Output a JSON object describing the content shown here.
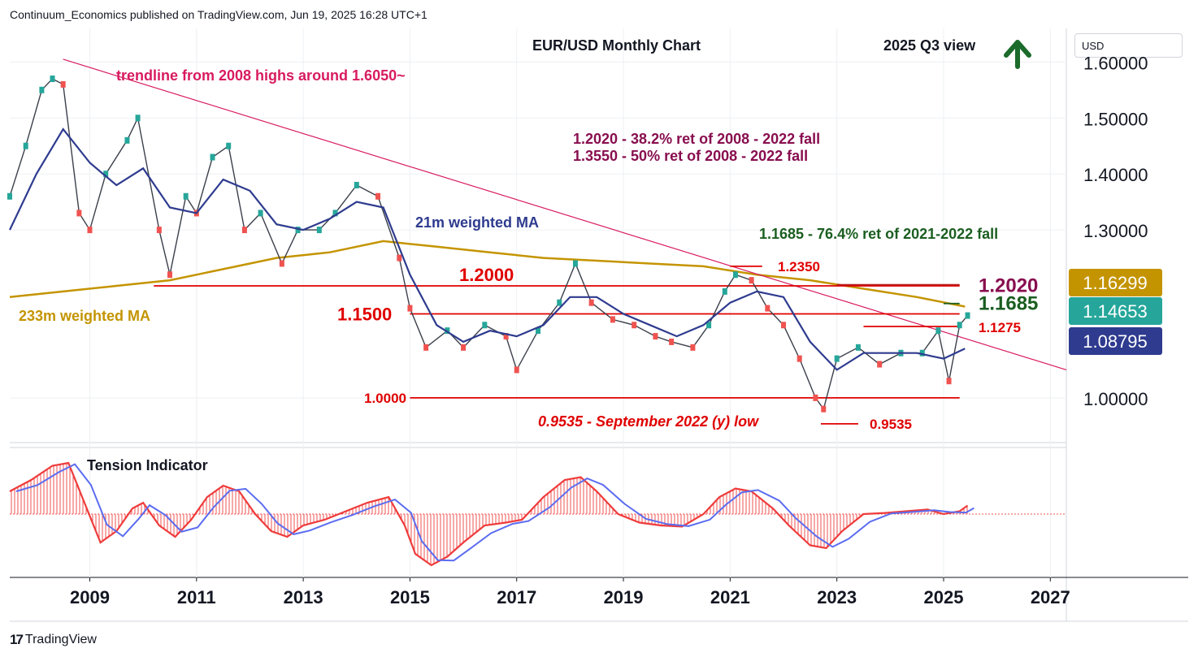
{
  "header": {
    "published": "Continuum_Economics published on TradingView.com, Jun 19, 2025 16:28 UTC+1"
  },
  "footer": {
    "brand": "TradingView"
  },
  "price_axis": {
    "currency": "USD"
  },
  "chart_data": {
    "type": "line",
    "title": "EUR/USD Monthly Chart",
    "subtitle": "2025 Q3 view",
    "view_direction": "up",
    "colors": {
      "price_up": "#26a69a",
      "price_down": "#ef5350",
      "wma21": "#2e3b8f",
      "ma233": "#c49400",
      "trendline": "#d81b60",
      "levels": "#e00000",
      "fib": "#880e4f",
      "fib_green": "#1b5e20"
    },
    "x_ticks": [
      "2009",
      "2011",
      "2013",
      "2015",
      "2017",
      "2019",
      "2021",
      "2023",
      "2025",
      "2027"
    ],
    "y_ticks": [
      "1.60000",
      "1.50000",
      "1.40000",
      "1.30000",
      "1.00000"
    ],
    "ylim": [
      0.92,
      1.66
    ],
    "xlim": [
      2007.5,
      2027.3
    ],
    "series": [
      {
        "name": "21m weighted MA",
        "x": [
          2007.5,
          2008.0,
          2008.5,
          2009.0,
          2009.5,
          2010.0,
          2010.5,
          2011.0,
          2011.5,
          2012.0,
          2012.5,
          2013.0,
          2013.5,
          2014.0,
          2014.5,
          2015.0,
          2015.5,
          2016.0,
          2016.5,
          2017.0,
          2017.5,
          2018.0,
          2018.5,
          2019.0,
          2019.5,
          2020.0,
          2020.5,
          2021.0,
          2021.5,
          2022.0,
          2022.5,
          2023.0,
          2023.5,
          2024.0,
          2024.5,
          2025.0,
          2025.4
        ],
        "y": [
          1.3,
          1.4,
          1.48,
          1.42,
          1.38,
          1.41,
          1.34,
          1.33,
          1.39,
          1.37,
          1.31,
          1.3,
          1.32,
          1.35,
          1.34,
          1.22,
          1.13,
          1.1,
          1.12,
          1.11,
          1.13,
          1.18,
          1.18,
          1.15,
          1.13,
          1.11,
          1.13,
          1.17,
          1.19,
          1.18,
          1.1,
          1.05,
          1.08,
          1.08,
          1.08,
          1.07,
          1.088
        ]
      },
      {
        "name": "233m weighted MA",
        "x": [
          2007.5,
          2008.5,
          2009.5,
          2010.5,
          2011.5,
          2012.5,
          2013.5,
          2014.5,
          2015.5,
          2016.5,
          2017.5,
          2018.5,
          2019.5,
          2020.5,
          2021.5,
          2022.5,
          2023.5,
          2024.5,
          2025.4
        ],
        "y": [
          1.18,
          1.19,
          1.2,
          1.21,
          1.23,
          1.25,
          1.26,
          1.28,
          1.27,
          1.26,
          1.25,
          1.245,
          1.24,
          1.235,
          1.22,
          1.21,
          1.195,
          1.18,
          1.163
        ]
      },
      {
        "name": "EUR/USD",
        "x": [
          2007.5,
          2007.8,
          2008.1,
          2008.3,
          2008.5,
          2008.8,
          2009.0,
          2009.3,
          2009.7,
          2009.9,
          2010.3,
          2010.5,
          2010.8,
          2011.0,
          2011.3,
          2011.6,
          2011.9,
          2012.2,
          2012.6,
          2012.9,
          2013.3,
          2013.6,
          2014.0,
          2014.4,
          2014.8,
          2015.0,
          2015.3,
          2015.7,
          2016.0,
          2016.4,
          2016.8,
          2017.0,
          2017.4,
          2017.8,
          2018.1,
          2018.4,
          2018.8,
          2019.2,
          2019.6,
          2019.9,
          2020.3,
          2020.6,
          2020.9,
          2021.1,
          2021.4,
          2021.7,
          2022.0,
          2022.3,
          2022.6,
          2022.75,
          2023.0,
          2023.4,
          2023.8,
          2024.2,
          2024.6,
          2024.9,
          2025.1,
          2025.3,
          2025.45
        ],
        "y": [
          1.36,
          1.45,
          1.55,
          1.57,
          1.56,
          1.33,
          1.3,
          1.4,
          1.46,
          1.5,
          1.3,
          1.22,
          1.36,
          1.33,
          1.43,
          1.45,
          1.3,
          1.33,
          1.24,
          1.3,
          1.3,
          1.33,
          1.38,
          1.36,
          1.25,
          1.16,
          1.09,
          1.12,
          1.09,
          1.13,
          1.11,
          1.05,
          1.12,
          1.17,
          1.24,
          1.17,
          1.14,
          1.13,
          1.11,
          1.1,
          1.09,
          1.13,
          1.19,
          1.22,
          1.21,
          1.16,
          1.13,
          1.07,
          1.0,
          0.98,
          1.07,
          1.09,
          1.06,
          1.08,
          1.08,
          1.12,
          1.03,
          1.13,
          1.147
        ]
      }
    ],
    "trendline": {
      "label": "trendline from 2008 highs around 1.6050~",
      "x": [
        2008.5,
        2027.3
      ],
      "y": [
        1.605,
        1.05
      ]
    },
    "levels": [
      {
        "label": "1.2000",
        "value": 1.2,
        "x_from": 2010.2,
        "x_to": 2025.3
      },
      {
        "label": "1.1500",
        "value": 1.15,
        "x_from": 2015.0,
        "x_to": 2025.3
      },
      {
        "label": "1.0000",
        "value": 1.0,
        "x_from": 2015.0,
        "x_to": 2025.3
      },
      {
        "label": "1.2350",
        "value": 1.235,
        "x_from": 2021.0,
        "x_to": 2021.6
      },
      {
        "label": "1.2020",
        "value": 1.202,
        "x_from": 2023.0,
        "x_to": 2025.3
      },
      {
        "label": "1.1685",
        "value": 1.1685,
        "x_from": 2025.0,
        "x_to": 2025.3
      },
      {
        "label": "1.1275",
        "value": 1.1275,
        "x_from": 2023.5,
        "x_to": 2025.3
      },
      {
        "label": "0.9535",
        "value": 0.9535,
        "x_from": 2022.7,
        "x_to": 2023.4
      }
    ],
    "annotations": [
      "1.2020 - 38.2% ret of 2008 - 2022 fall",
      "1.3550 - 50% ret of 2008 - 2022 fall",
      "1.1685 - 76.4% ret of 2021-2022 fall",
      "21m weighted MA",
      "233m weighted MA",
      "0.9535 - September 2022 (y) low"
    ],
    "price_badges": [
      {
        "value": "1.16299",
        "color": "#c49400"
      },
      {
        "value": "1.14653",
        "color": "#26a69a"
      },
      {
        "value": "1.08795",
        "color": "#2e3b8f"
      }
    ],
    "indicator": {
      "name": "Tension Indicator",
      "x": [
        2007.5,
        2007.9,
        2008.3,
        2008.6,
        2008.9,
        2009.2,
        2009.5,
        2009.8,
        2010.0,
        2010.3,
        2010.6,
        2010.9,
        2011.2,
        2011.5,
        2011.8,
        2012.1,
        2012.4,
        2012.7,
        2013.0,
        2013.4,
        2013.8,
        2014.2,
        2014.6,
        2014.9,
        2015.1,
        2015.4,
        2015.7,
        2016.0,
        2016.4,
        2016.8,
        2017.1,
        2017.5,
        2017.9,
        2018.2,
        2018.5,
        2018.9,
        2019.3,
        2019.7,
        2020.1,
        2020.5,
        2020.8,
        2021.1,
        2021.4,
        2021.8,
        2022.1,
        2022.5,
        2022.8,
        2023.1,
        2023.5,
        2023.9,
        2024.3,
        2024.7,
        2025.0,
        2025.3,
        2025.45
      ],
      "y": [
        0.4,
        0.6,
        0.85,
        0.9,
        0.2,
        -0.5,
        -0.3,
        0.1,
        0.2,
        -0.2,
        -0.4,
        -0.1,
        0.3,
        0.5,
        0.4,
        0.0,
        -0.3,
        -0.4,
        -0.2,
        -0.1,
        0.05,
        0.2,
        0.3,
        -0.2,
        -0.7,
        -0.9,
        -0.75,
        -0.5,
        -0.2,
        -0.15,
        -0.1,
        0.3,
        0.6,
        0.65,
        0.4,
        0.0,
        -0.15,
        -0.2,
        -0.22,
        0.0,
        0.3,
        0.45,
        0.4,
        0.1,
        -0.2,
        -0.55,
        -0.6,
        -0.3,
        0.0,
        0.02,
        0.05,
        0.08,
        0.0,
        0.05,
        0.15
      ]
    }
  }
}
